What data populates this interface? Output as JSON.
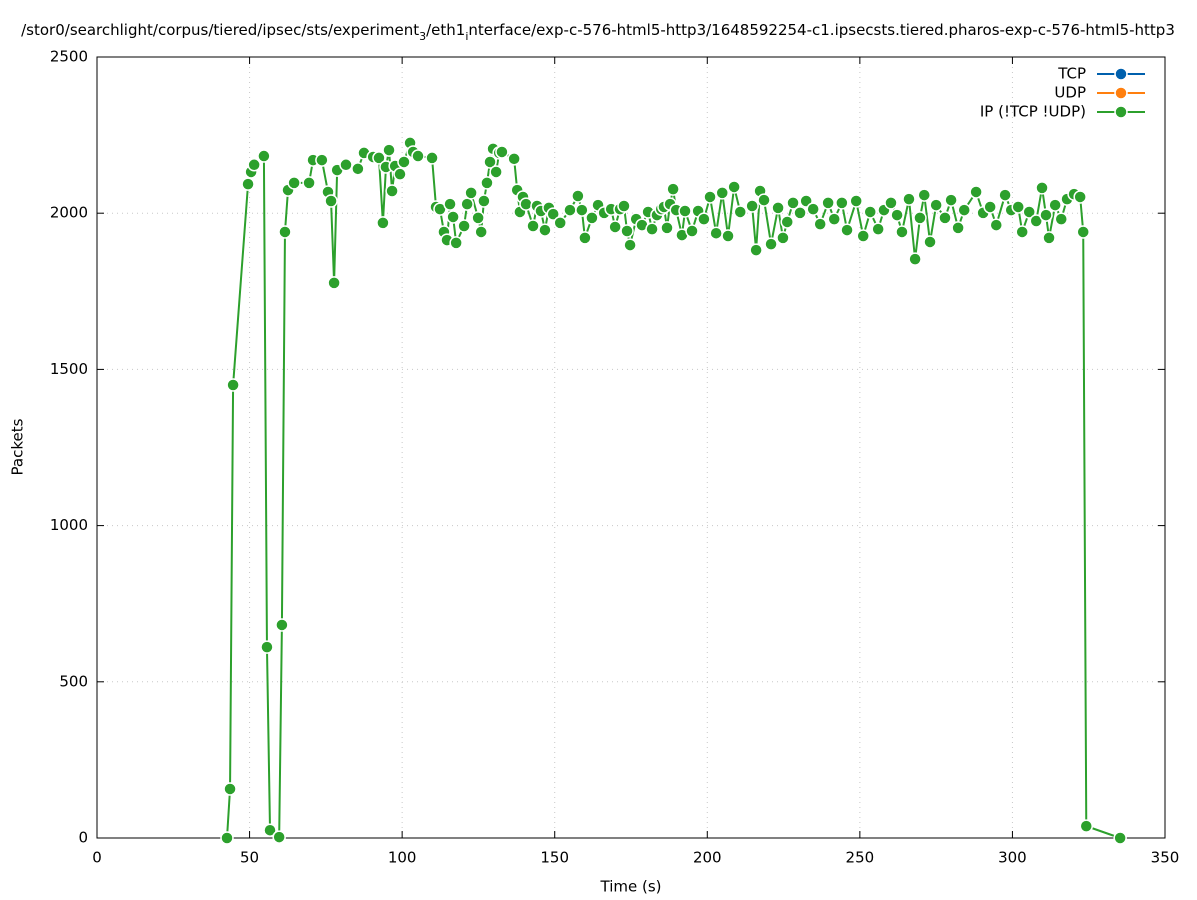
{
  "chart_data": {
    "type": "line",
    "title_parts": [
      "/stor0/searchlight/corpus/tiered/ipsec/sts/experiment",
      "3",
      "/eth1",
      "i",
      "nterface/exp-c-576-html5-http3/1648592254-c1.ipsecsts.tiered.pharos-exp-c-576-html5-http3"
    ],
    "x_label": "Time (s)",
    "y_label": "Packets",
    "xlim": [
      0,
      350
    ],
    "xticks": [
      0,
      50,
      100,
      150,
      200,
      250,
      300,
      350
    ],
    "ylim": [
      0,
      2500
    ],
    "yticks": [
      0,
      500,
      1000,
      1500,
      2000,
      2500
    ],
    "grid": true,
    "legend": "top-right",
    "series": [
      {
        "name": "TCP",
        "color": "#0060ad",
        "x": [],
        "values": []
      },
      {
        "name": "UDP",
        "color": "#ff7f0e",
        "x": [],
        "values": []
      },
      {
        "name": "IP (!TCP  !UDP)",
        "color": "#2ca02c",
        "x": [
          42.6,
          43.6,
          44.6,
          49.5,
          50.5,
          51.5,
          54.7,
          55.7,
          56.7,
          59.7,
          60.6,
          61.6,
          62.6,
          64.6,
          69.5,
          70.8,
          73.7,
          75.7,
          76.7,
          77.7,
          78.7,
          81.6,
          85.5,
          87.5,
          90.5,
          92.4,
          93.7,
          94.7,
          95.7,
          96.7,
          97.7,
          99.3,
          100.6,
          102.6,
          103.6,
          105.2,
          109.8,
          111.1,
          112.4,
          113.7,
          114.7,
          115.7,
          116.7,
          117.7,
          120.3,
          121.3,
          122.6,
          124.9,
          125.9,
          126.8,
          127.8,
          128.8,
          129.8,
          130.8,
          131.8,
          132.7,
          136.7,
          137.7,
          138.6,
          139.6,
          140.6,
          142.9,
          144.2,
          145.5,
          146.8,
          148.1,
          149.5,
          151.8,
          155.0,
          157.6,
          158.9,
          159.9,
          162.2,
          164.2,
          166.2,
          168.5,
          169.8,
          171.4,
          172.7,
          173.7,
          174.7,
          176.7,
          178.6,
          180.6,
          181.9,
          183.5,
          184.9,
          185.8,
          186.8,
          187.8,
          188.8,
          189.8,
          191.7,
          192.7,
          195.0,
          197.0,
          198.9,
          200.9,
          202.9,
          204.9,
          206.8,
          208.8,
          210.8,
          214.7,
          216.0,
          217.3,
          218.6,
          220.9,
          223.2,
          224.8,
          226.2,
          228.1,
          230.4,
          232.4,
          234.7,
          237.0,
          239.6,
          241.6,
          244.1,
          245.8,
          248.8,
          251.1,
          253.4,
          256.0,
          257.9,
          260.2,
          262.2,
          263.8,
          266.1,
          268.1,
          269.7,
          271.1,
          273.0,
          275.0,
          277.9,
          279.9,
          282.2,
          284.2,
          288.1,
          290.4,
          292.7,
          294.7,
          297.6,
          299.6,
          301.9,
          303.2,
          305.5,
          307.8,
          309.7,
          311.0,
          312.0,
          314.0,
          316.0,
          317.9,
          320.2,
          322.2,
          323.2,
          324.2,
          335.3
        ],
        "values": [
          0,
          157,
          1450,
          2093,
          2132,
          2155,
          2183,
          611,
          25,
          3,
          682,
          1940,
          2074,
          2097,
          2097,
          2170,
          2170,
          2068,
          2039,
          1777,
          2138,
          2155,
          2142,
          2193,
          2180,
          2177,
          1969,
          2148,
          2202,
          2071,
          2151,
          2125,
          2164,
          2225,
          2196,
          2183,
          2177,
          2020,
          2013,
          1940,
          1914,
          2029,
          1988,
          1905,
          1959,
          2029,
          2065,
          1985,
          1940,
          2039,
          2097,
          2164,
          2206,
          2132,
          2193,
          2196,
          2174,
          2074,
          2004,
          2052,
          2029,
          1959,
          2023,
          2007,
          1946,
          2017,
          1997,
          1969,
          2010,
          2055,
          2010,
          1921,
          1985,
          2026,
          2001,
          2013,
          1956,
          2013,
          2023,
          1943,
          1898,
          1981,
          1962,
          2004,
          1949,
          1994,
          2013,
          2020,
          1953,
          2029,
          2077,
          2010,
          1930,
          2007,
          1943,
          2007,
          1981,
          2052,
          1936,
          2065,
          1927,
          2084,
          2004,
          2023,
          1882,
          2071,
          2042,
          1901,
          2017,
          1921,
          1972,
          2033,
          2001,
          2039,
          2013,
          1965,
          2033,
          1981,
          2033,
          1946,
          2039,
          1927,
          2004,
          1949,
          2010,
          2033,
          1994,
          1940,
          2045,
          1853,
          1985,
          2058,
          1908,
          2026,
          1985,
          2042,
          1953,
          2010,
          2068,
          2001,
          2020,
          1962,
          2058,
          2010,
          2020,
          1940,
          2004,
          1975,
          2081,
          1994,
          1921,
          2026,
          1981,
          2045,
          2061,
          2052,
          1940,
          38,
          0
        ]
      }
    ]
  }
}
